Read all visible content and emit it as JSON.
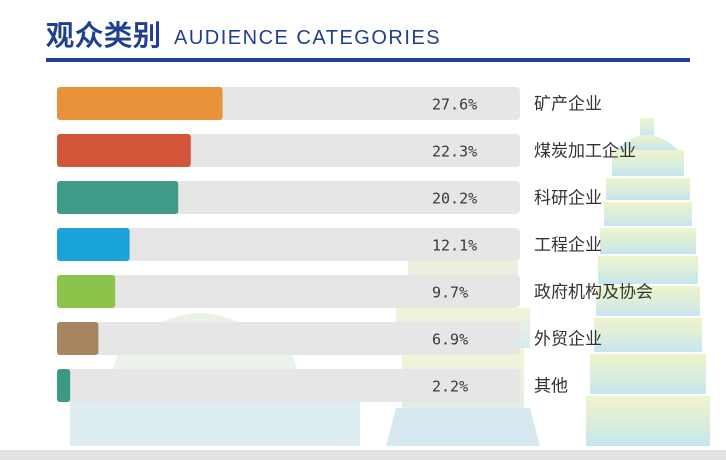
{
  "header": {
    "title_cn": "观众类别",
    "title_en": "AUDIENCE CATEGORIES"
  },
  "colors": {
    "brand": "#1f3f8f",
    "track": "#e6e6e6"
  },
  "chart_data": {
    "type": "bar",
    "orientation": "horizontal",
    "title": "观众类别 AUDIENCE CATEGORIES",
    "categories": [
      "矿产企业",
      "煤炭加工企业",
      "科研企业",
      "工程企业",
      "政府机构及协会",
      "外贸企业",
      "其他"
    ],
    "values": [
      27.6,
      22.3,
      20.2,
      12.1,
      9.7,
      6.9,
      2.2
    ],
    "labels": [
      "27.6%",
      "22.3%",
      "20.2%",
      "12.1%",
      "9.7%",
      "6.9%",
      "2.2%"
    ],
    "colors": [
      "#e8923c",
      "#d4563a",
      "#3f9a8a",
      "#1aa3d8",
      "#8cc34a",
      "#a88461",
      "#3a9a86"
    ],
    "unit": "%",
    "xlim": [
      0,
      100
    ]
  }
}
